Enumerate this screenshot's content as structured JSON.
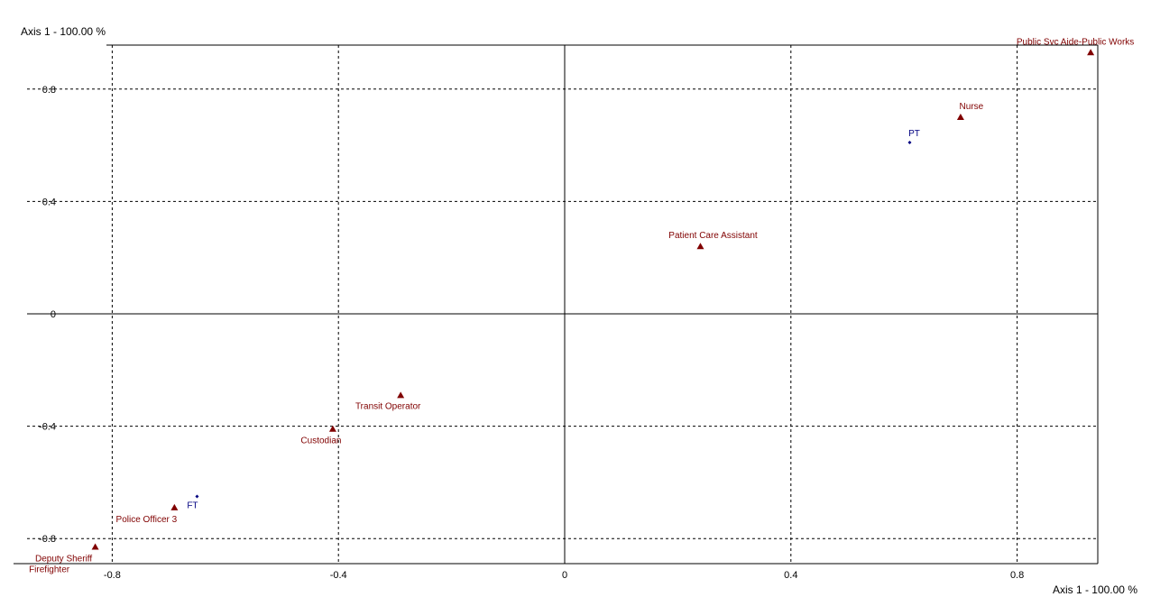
{
  "chart_data": {
    "type": "scatter",
    "title": "",
    "xlabel": "Axis 1  -  100.00 %",
    "ylabel": "Axis 1  -  100.00 %",
    "xlim": [
      -0.95,
      0.95
    ],
    "ylim": [
      -0.87,
      0.95
    ],
    "x_ticks": [
      -0.8,
      -0.4,
      0,
      0.4,
      0.8
    ],
    "x_tick_labels": [
      "-0.8",
      "-0.4",
      "0",
      "0.4",
      "0.8"
    ],
    "y_ticks": [
      -0.8,
      -0.4,
      0,
      0.4,
      0.8
    ],
    "y_tick_labels": [
      "-0.8",
      "-0.4",
      "0",
      "0.4",
      "0.8"
    ],
    "grid": true,
    "series": [
      {
        "marker": "triangle",
        "color": "#800000",
        "points": [
          {
            "label": "Public Svc Aide-Public Works",
            "x": 0.93,
            "y": 0.93
          },
          {
            "label": "Nurse",
            "x": 0.7,
            "y": 0.7
          },
          {
            "label": "Patient Care Assistant",
            "x": 0.24,
            "y": 0.24
          },
          {
            "label": "Transit Operator",
            "x": -0.29,
            "y": -0.29
          },
          {
            "label": "Custodian",
            "x": -0.41,
            "y": -0.41
          },
          {
            "label": "Police Officer 3",
            "x": -0.69,
            "y": -0.69
          },
          {
            "label": "Deputy Sheriff",
            "x": -0.83,
            "y": -0.83
          },
          {
            "label": "Firefighter",
            "x": -0.83,
            "y": -0.83
          }
        ]
      },
      {
        "marker": "diamond",
        "color": "#000080",
        "points": [
          {
            "label": "PT",
            "x": 0.61,
            "y": 0.61
          },
          {
            "label": "FT",
            "x": -0.65,
            "y": -0.65
          }
        ]
      }
    ]
  }
}
